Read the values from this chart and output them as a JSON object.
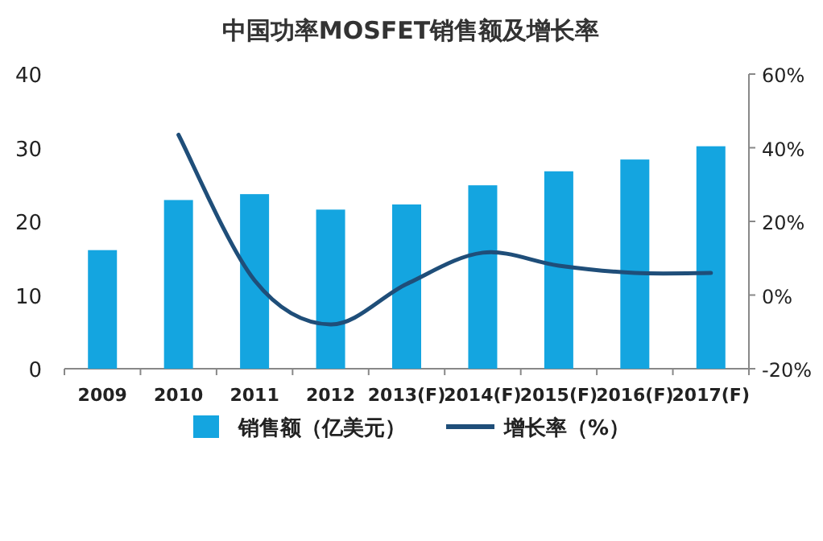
{
  "chart_data": {
    "type": "bar",
    "title": "中国功率MOSFET销售额及增长率",
    "categories": [
      "2009",
      "2010",
      "2011",
      "2012",
      "2013(F)",
      "2014(F)",
      "2015(F)",
      "2016(F)",
      "2017(F)"
    ],
    "series": [
      {
        "name": "销售额（亿美元）",
        "color": "#14a5e0",
        "values": [
          16.1,
          22.9,
          23.7,
          21.6,
          22.3,
          24.9,
          26.8,
          28.4,
          30.2
        ]
      },
      {
        "name": "增长率（%）",
        "type": "line",
        "axis": "y2",
        "color": "#1f4e79",
        "values": [
          null,
          43.5,
          4,
          -8,
          3,
          11.5,
          8,
          6,
          6
        ]
      }
    ],
    "ylim": [
      0,
      40
    ],
    "yticks": [
      0,
      10,
      20,
      30,
      40
    ],
    "y2lim": [
      -20,
      60
    ],
    "y2ticks": [
      {
        "value": -20,
        "label": "-20%"
      },
      {
        "value": 0,
        "label": "0%"
      },
      {
        "value": 20,
        "label": "20%"
      },
      {
        "value": 40,
        "label": "40%"
      },
      {
        "value": 60,
        "label": "60%"
      }
    ],
    "grid": false,
    "legend": "bottom",
    "marker": "none",
    "line_style": "solid"
  }
}
